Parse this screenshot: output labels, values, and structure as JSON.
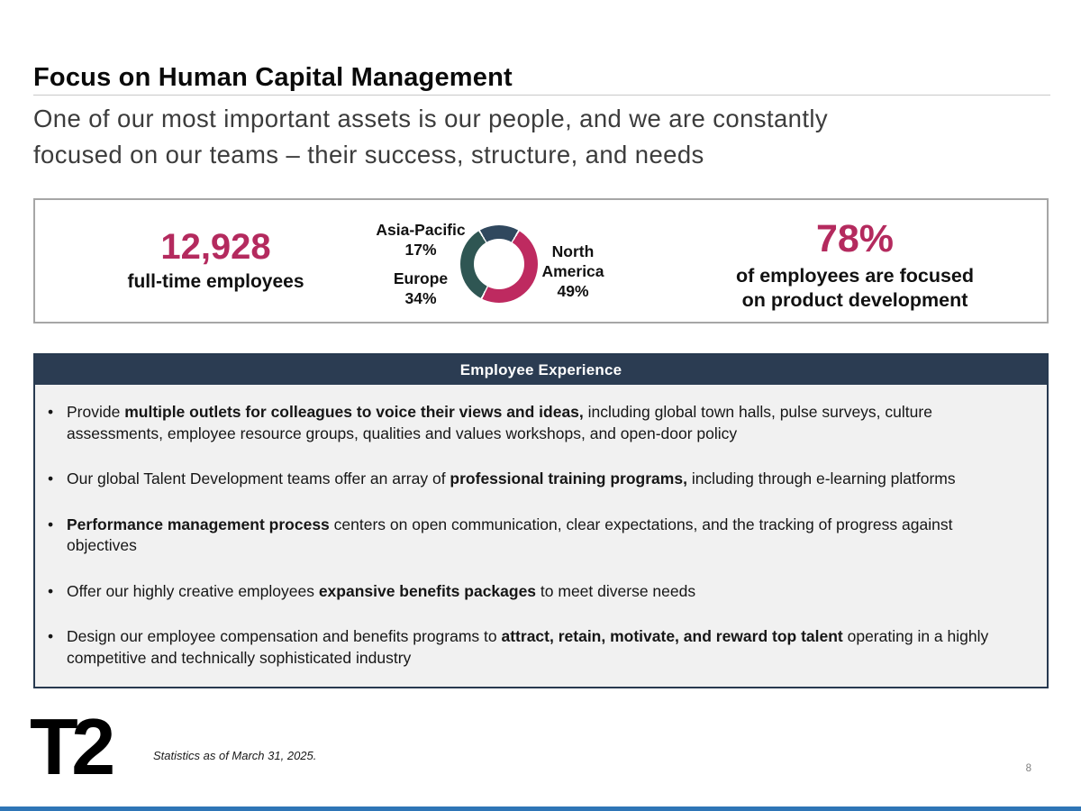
{
  "header": {
    "title": "Focus on Human Capital Management",
    "subtitle_line1": "One of our most important assets is our people, and we are constantly",
    "subtitle_line2": "focused on our teams – their success, structure, and needs"
  },
  "stats": {
    "employees": {
      "value": "12,928",
      "label": "full-time employees"
    },
    "product_development": {
      "value": "78%",
      "label_line1": "of employees are focused",
      "label_line2": "on product development"
    }
  },
  "chart_data": {
    "type": "pie",
    "donut": true,
    "labels": [
      "North America",
      "Europe",
      "Asia-Pacific"
    ],
    "values": [
      49,
      34,
      17
    ],
    "unit": "%",
    "colors": [
      "#be2a60",
      "#2f5653",
      "#30485e"
    ],
    "legend_position": "labels-around-chart",
    "labels_display": {
      "asia_pacific": {
        "name": "Asia-Pacific",
        "value": "17%"
      },
      "europe": {
        "name": "Europe",
        "value": "34%"
      },
      "north_america": {
        "name": "North America",
        "value": "49%"
      }
    }
  },
  "employee_experience": {
    "header": "Employee Experience",
    "bullet_char": "•",
    "bullets": [
      {
        "pre": "Provide ",
        "bold": "multiple outlets for colleagues to voice their views and ideas,",
        "post": " including global town halls, pulse surveys, culture assessments, employee resource groups, qualities and values workshops, and open-door policy"
      },
      {
        "pre": "Our global Talent Development teams offer an array of ",
        "bold": "professional training programs,",
        "post": " including through e-learning platforms"
      },
      {
        "pre": "",
        "bold": "Performance management process",
        "post": " centers on open communication, clear expectations, and the tracking of progress against objectives"
      },
      {
        "pre": "Offer our highly creative employees ",
        "bold": "expansive benefits packages",
        "post": " to meet diverse needs"
      },
      {
        "pre": "Design our employee compensation and benefits programs to ",
        "bold": "attract, retain, motivate, and reward top talent",
        "post": " operating in a highly competitive and technically sophisticated industry"
      }
    ]
  },
  "footer": {
    "logo_text": "T2",
    "footnote": "Statistics as of March 31, 2025.",
    "page_number": "8"
  },
  "colors": {
    "accent_magenta": "#b42a5e",
    "navy_header": "#2b3c52",
    "teal_segment": "#2f5653",
    "navy_segment": "#30485e",
    "panel_background": "#f1f1f1",
    "panel_border": "#283a50",
    "stats_border": "#a6a6a6",
    "bottom_bar_blue": "#2e75b6"
  }
}
